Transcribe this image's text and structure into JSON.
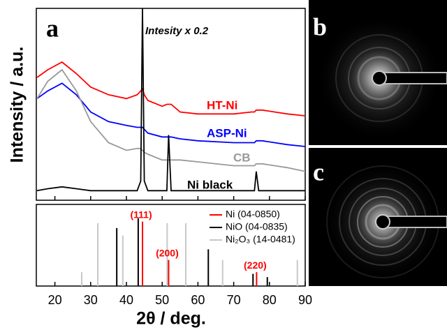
{
  "panel_labels": [
    "a",
    "b",
    "c"
  ],
  "chart_data": [
    {
      "type": "line",
      "ylabel": "Intensity / a.u.",
      "annotation": "Intesity x 0.2",
      "xlim": [
        15,
        90
      ],
      "ylim": [
        0,
        100
      ],
      "x": [
        15,
        18,
        22,
        26,
        30,
        35,
        40,
        43,
        44,
        44.5,
        45,
        46,
        50,
        51.3,
        51.8,
        52.5,
        55,
        60,
        70,
        75,
        75.8,
        76.3,
        77,
        78,
        85,
        90
      ],
      "series": [
        {
          "name": "HT-Ni",
          "color": "#ff0000",
          "values": [
            64,
            68,
            72,
            66,
            59,
            55,
            53,
            55,
            57,
            58,
            55,
            52,
            49,
            50,
            50,
            50,
            46,
            45,
            45,
            46,
            46,
            47,
            47,
            47,
            45,
            44
          ]
        },
        {
          "name": "ASP-Ni",
          "color": "#0000ff",
          "values": [
            53,
            57,
            61,
            55,
            46,
            41,
            39,
            38,
            38,
            38,
            37,
            35,
            33,
            33,
            33,
            33,
            32,
            31,
            30,
            30,
            30,
            31,
            31,
            31,
            29,
            28
          ]
        },
        {
          "name": "CB",
          "color": "#999999",
          "values": [
            53,
            62,
            68,
            57,
            41,
            30,
            26,
            27,
            27,
            26,
            25,
            24,
            21,
            21,
            21,
            21,
            21,
            20,
            18,
            18,
            18,
            19,
            19,
            19,
            17,
            15
          ]
        },
        {
          "name": "Ni black",
          "color": "#000000",
          "values": [
            5,
            6,
            7,
            6,
            5,
            5,
            5,
            5,
            10,
            100,
            10,
            5,
            5,
            5,
            34,
            5,
            5,
            5,
            5,
            5,
            5,
            15,
            5,
            5,
            5,
            5
          ]
        }
      ]
    },
    {
      "type": "stem",
      "xlabel": "2θ / deg.",
      "xlim": [
        15,
        90
      ],
      "ylim": [
        0,
        100
      ],
      "xticks": [
        20,
        30,
        40,
        50,
        60,
        70,
        80,
        90
      ],
      "legend": "upper right",
      "series": [
        {
          "name": "Ni₂O₃ (14-0481)",
          "color": "#c8c8c8",
          "x": [
            27.5,
            32,
            39,
            51.4,
            56.6,
            66.9,
            87.8
          ],
          "values": [
            17,
            77,
            62,
            77,
            77,
            32,
            32
          ]
        },
        {
          "name": "NiO (04-0835)",
          "color": "#000000",
          "x": [
            37.3,
            43.3,
            62.9,
            75.4,
            79.4
          ],
          "values": [
            71,
            83,
            45,
            15,
            11
          ]
        },
        {
          "name": "Ni (04-0850)",
          "color": "#ff0000",
          "x": [
            44.5,
            51.8,
            76.4
          ],
          "values": [
            79,
            32,
            17
          ],
          "labels": [
            "(111)",
            "(200)",
            "(220)"
          ]
        }
      ]
    }
  ]
}
